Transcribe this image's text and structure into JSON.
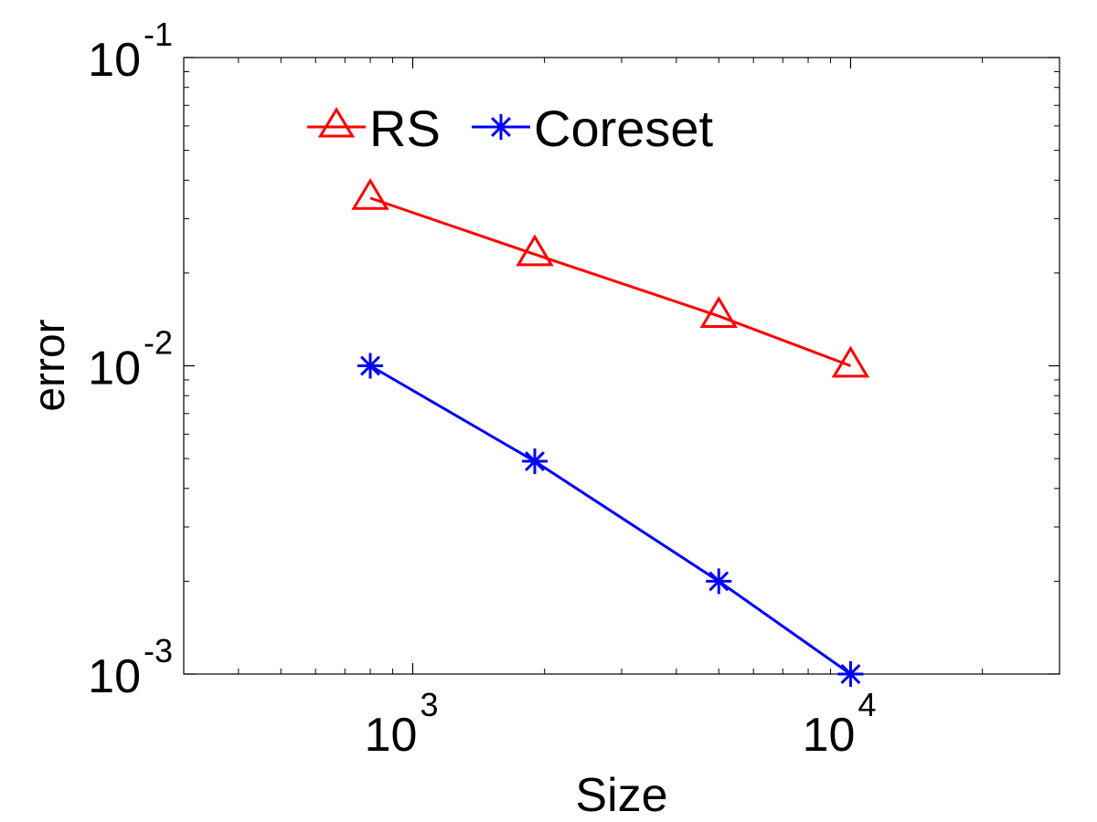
{
  "chart_data": {
    "type": "line",
    "xscale": "log",
    "yscale": "log",
    "xlabel": "Size",
    "ylabel": "error",
    "xlim": [
      300,
      30000
    ],
    "ylim": [
      0.001,
      0.1
    ],
    "grid": false,
    "legend_position": "top-left",
    "x_ticks": [
      {
        "base": "10",
        "exp": "3",
        "value": 1000
      },
      {
        "base": "10",
        "exp": "4",
        "value": 10000
      }
    ],
    "y_ticks": [
      {
        "base": "10",
        "exp": "-3",
        "value": 0.001
      },
      {
        "base": "10",
        "exp": "-2",
        "value": 0.01
      },
      {
        "base": "10",
        "exp": "-1",
        "value": 0.1
      }
    ],
    "series": [
      {
        "name": "RS",
        "color": "#ff0000",
        "marker": "triangle",
        "x": [
          800,
          1900,
          5000,
          10000
        ],
        "y": [
          0.035,
          0.023,
          0.0145,
          0.01
        ]
      },
      {
        "name": "Coreset",
        "color": "#0000ff",
        "marker": "asterisk",
        "x": [
          800,
          1900,
          5000,
          10000
        ],
        "y": [
          0.01,
          0.0049,
          0.002,
          0.001
        ]
      }
    ]
  }
}
